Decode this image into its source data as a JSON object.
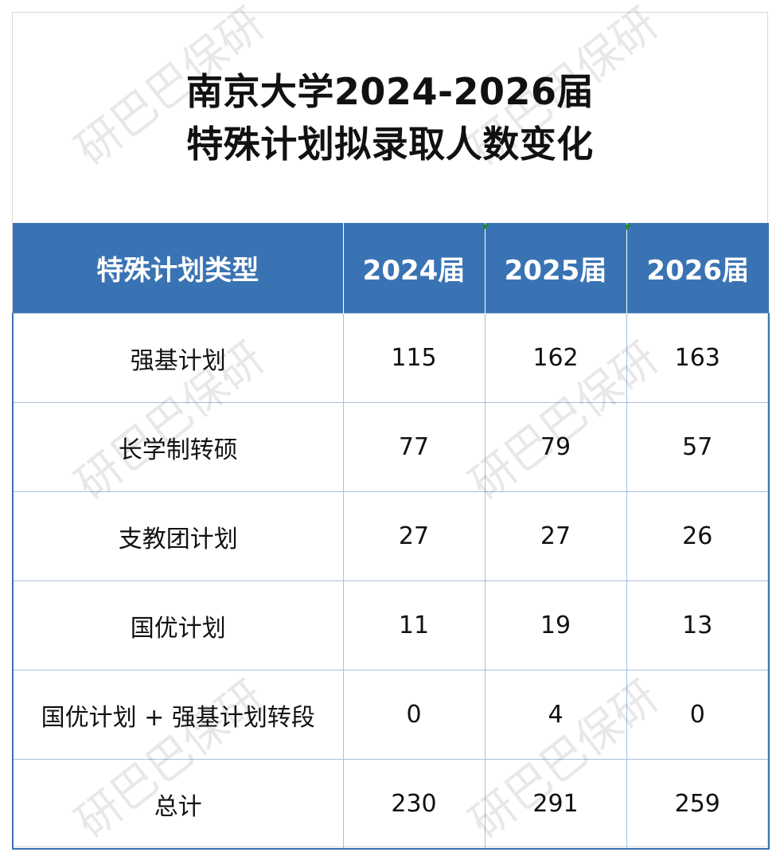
{
  "title": {
    "line1": "南京大学2024-2026届",
    "line2": "特殊计划拟录取人数变化"
  },
  "table": {
    "headers": [
      "特殊计划类型",
      "2024届",
      "2025届",
      "2026届"
    ],
    "rows": [
      {
        "type": "强基计划",
        "y2024": "115",
        "y2025": "162",
        "y2026": "163"
      },
      {
        "type": "长学制转硕",
        "y2024": "77",
        "y2025": "79",
        "y2026": "57"
      },
      {
        "type": "支教团计划",
        "y2024": "27",
        "y2025": "27",
        "y2026": "26"
      },
      {
        "type": "国优计划",
        "y2024": "11",
        "y2025": "19",
        "y2026": "13"
      },
      {
        "type": "国优计划 + 强基计划转段",
        "y2024": "0",
        "y2025": "4",
        "y2026": "0"
      },
      {
        "type": "总计",
        "y2024": "230",
        "y2025": "291",
        "y2026": "259"
      }
    ]
  },
  "watermark": "研巴巴保研",
  "colors": {
    "header_bg": "#3a73b3",
    "grid_line": "#a9bfdc",
    "marker": "#1f8a2c"
  }
}
